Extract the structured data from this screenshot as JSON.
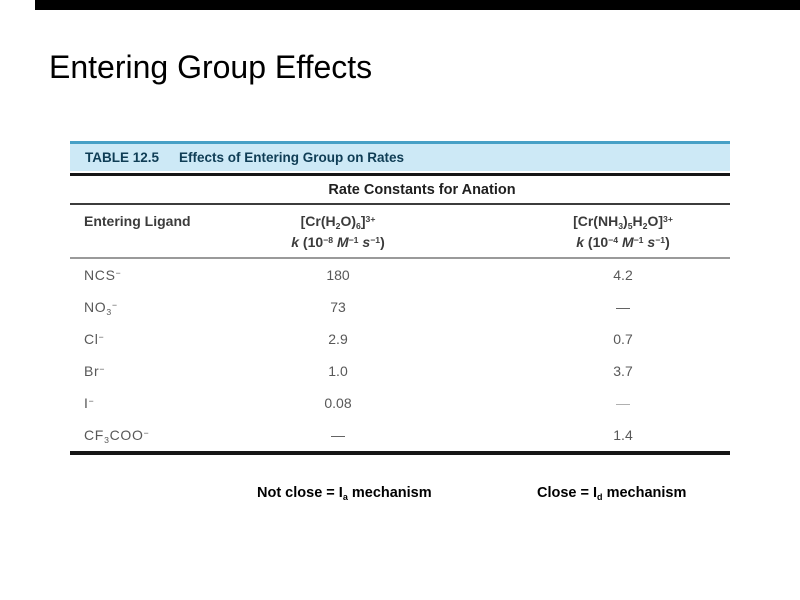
{
  "slide": {
    "title": "Entering Group Effects"
  },
  "table": {
    "label": "TABLE 12.5",
    "heading": "Effects of Entering Group on Rates",
    "subtitle": "Rate Constants for Anation",
    "col1_header": "Entering Ligand",
    "col2_formula": "[Cr(H<sub>2</sub>O)<sub>6</sub>]<sup>3+</sup>",
    "col2_units": "<i>k</i> (10<sup>−8</sup> <i>M</i><sup>−1</sup> <i>s</i><sup>−1</sup>)",
    "col3_formula": "[Cr(NH<sub>3</sub>)<sub>5</sub>H<sub>2</sub>O]<sup>3+</sup>",
    "col3_units": "<i>k</i> (10<sup>−4</sup> <i>M</i><sup>−1</sup> <i>s</i><sup>−1</sup>)",
    "rows": [
      {
        "ligand": "NCS<sup>−</sup>",
        "v1": "180",
        "v2": "4.2"
      },
      {
        "ligand": "NO<sub>3</sub><sup>−</sup>",
        "v1": "73",
        "v2": "—"
      },
      {
        "ligand": "Cl<sup>−</sup>",
        "v1": "2.9",
        "v2": "0.7"
      },
      {
        "ligand": "Br<sup>−</sup>",
        "v1": "1.0",
        "v2": "3.7"
      },
      {
        "ligand": "I<sup>−</sup>",
        "v1": "0.08",
        "v2": "—"
      },
      {
        "ligand": "CF<sub>3</sub>COO<sup>−</sup>",
        "v1": "—",
        "v2": "1.4"
      }
    ]
  },
  "captions": {
    "left": "Not close = I<sub>a</sub> mechanism",
    "right": "Close = I<sub>d</sub> mechanism"
  },
  "colors": {
    "top_bar": "#000000",
    "band_bg": "#cde9f6",
    "band_line": "#47a0c6",
    "band_text": "#0f3d55"
  }
}
